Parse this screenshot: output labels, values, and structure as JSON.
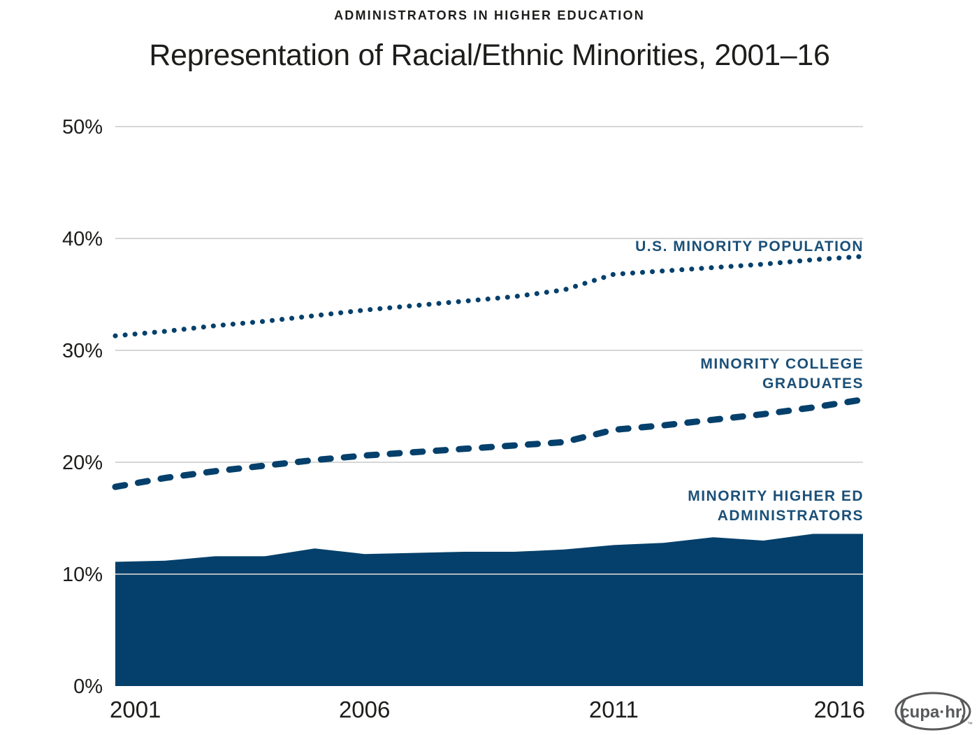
{
  "header": {
    "eyebrow": "ADMINISTRATORS IN HIGHER EDUCATION",
    "title": "Representation of Racial/Ethnic Minorities, 2001–16"
  },
  "colors": {
    "navy": "#04406b",
    "label_navy": "#1b5078",
    "grid": "#cfcfcf",
    "text_dark": "#1d1d1b",
    "logo_gray": "#58595b",
    "background": "#ffffff"
  },
  "chart_data": {
    "type": "area",
    "title": "Representation of Racial/Ethnic Minorities, 2001–16",
    "subtitle": "ADMINISTRATORS IN HIGHER EDUCATION",
    "x": [
      2001,
      2002,
      2003,
      2004,
      2005,
      2006,
      2007,
      2008,
      2009,
      2010,
      2011,
      2012,
      2013,
      2014,
      2015,
      2016
    ],
    "xlabel": "",
    "ylabel": "",
    "ylim": [
      0,
      50
    ],
    "yticks": [
      0,
      10,
      20,
      30,
      40,
      50
    ],
    "ytick_labels": [
      "0%",
      "10%",
      "20%",
      "30%",
      "40%",
      "50%"
    ],
    "xticks": [
      2001,
      2006,
      2011,
      2016
    ],
    "xtick_labels": [
      "2001",
      "2006",
      "2011",
      "2016"
    ],
    "grid": "horizontal",
    "legend_position": "inline-right-of-plot",
    "series": [
      {
        "name": "U.S. MINORITY POPULATION",
        "label_lines": [
          "U.S. MINORITY POPULATION"
        ],
        "type": "line",
        "line_style": "dotted",
        "values": [
          31.3,
          31.7,
          32.2,
          32.6,
          33.1,
          33.6,
          34.0,
          34.4,
          34.8,
          35.4,
          36.8,
          37.1,
          37.4,
          37.7,
          38.1,
          38.4
        ]
      },
      {
        "name": "MINORITY COLLEGE GRADUATES",
        "label_lines": [
          "MINORITY COLLEGE",
          "GRADUATES"
        ],
        "type": "line",
        "line_style": "dashed",
        "values": [
          17.8,
          18.6,
          19.2,
          19.7,
          20.2,
          20.6,
          20.9,
          21.2,
          21.5,
          21.8,
          22.9,
          23.3,
          23.8,
          24.3,
          24.9,
          25.6
        ]
      },
      {
        "name": "MINORITY HIGHER ED ADMINISTRATORS",
        "label_lines": [
          "MINORITY HIGHER ED",
          "ADMINISTRATORS"
        ],
        "type": "area",
        "line_style": "solid",
        "values": [
          11.1,
          11.2,
          11.6,
          11.6,
          12.3,
          11.8,
          11.9,
          12.0,
          12.0,
          12.2,
          12.6,
          12.8,
          13.3,
          13.0,
          13.6,
          13.6
        ]
      }
    ]
  },
  "footer": {
    "logo_text": "cupa·hr.",
    "logo_tm": "™"
  }
}
